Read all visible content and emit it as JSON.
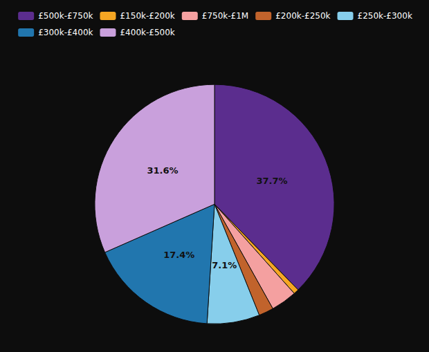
{
  "chart_data": {
    "type": "pie",
    "categories": [
      "£500k-£750k",
      "£150k-£200k",
      "£750k-£1M",
      "£200k-£250k",
      "£250k-£300k",
      "£300k-£400k",
      "£400k-£500k"
    ],
    "values": [
      37.7,
      0.7,
      3.5,
      2.0,
      7.1,
      17.4,
      31.6
    ],
    "value_labels": [
      "37.7%",
      null,
      null,
      null,
      "7.1%",
      "17.4%",
      "31.6%"
    ],
    "colors": [
      "#5b2d8e",
      "#f5a623",
      "#f4a0a0",
      "#c1632c",
      "#87ceeb",
      "#2176ae",
      "#c9a0dc"
    ],
    "data_labels": true,
    "legend": "top"
  }
}
